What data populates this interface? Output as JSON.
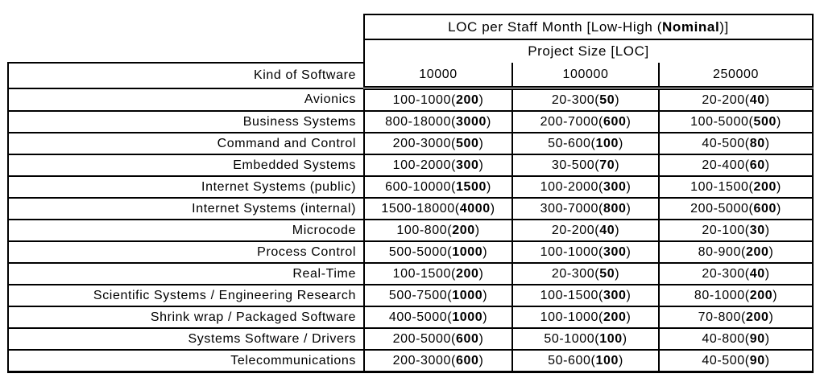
{
  "header": {
    "title": {
      "prefix": "LOC per Staff Month [Low-High (",
      "bold": "Nominal",
      "suffix": ")]"
    },
    "subtitle": "Project Size [LOC]",
    "kind_label": "Kind of Software",
    "columns": [
      "10000",
      "100000",
      "250000"
    ]
  },
  "cell_format": {
    "open": "(",
    "close": ")"
  },
  "rows": [
    {
      "kind": "Avionics",
      "cells": [
        {
          "range": "100-1000",
          "nominal": "200"
        },
        {
          "range": "20-300",
          "nominal": "50"
        },
        {
          "range": "20-200",
          "nominal": "40"
        }
      ]
    },
    {
      "kind": "Business Systems",
      "cells": [
        {
          "range": "800-18000",
          "nominal": "3000"
        },
        {
          "range": "200-7000",
          "nominal": "600"
        },
        {
          "range": "100-5000",
          "nominal": "500"
        }
      ]
    },
    {
      "kind": "Command and Control",
      "cells": [
        {
          "range": "200-3000",
          "nominal": "500"
        },
        {
          "range": "50-600",
          "nominal": "100"
        },
        {
          "range": "40-500",
          "nominal": "80"
        }
      ]
    },
    {
      "kind": "Embedded Systems",
      "cells": [
        {
          "range": "100-2000",
          "nominal": "300"
        },
        {
          "range": "30-500",
          "nominal": "70"
        },
        {
          "range": "20-400",
          "nominal": "60"
        }
      ]
    },
    {
      "kind": "Internet Systems (public)",
      "cells": [
        {
          "range": "600-10000",
          "nominal": "1500"
        },
        {
          "range": "100-2000",
          "nominal": "300"
        },
        {
          "range": "100-1500",
          "nominal": "200"
        }
      ]
    },
    {
      "kind": "Internet Systems (internal)",
      "cells": [
        {
          "range": "1500-18000",
          "nominal": "4000"
        },
        {
          "range": "300-7000",
          "nominal": "800"
        },
        {
          "range": "200-5000",
          "nominal": "600"
        }
      ]
    },
    {
      "kind": "Microcode",
      "cells": [
        {
          "range": "100-800",
          "nominal": "200"
        },
        {
          "range": "20-200",
          "nominal": "40"
        },
        {
          "range": "20-100",
          "nominal": "30"
        }
      ]
    },
    {
      "kind": "Process Control",
      "cells": [
        {
          "range": "500-5000",
          "nominal": "1000"
        },
        {
          "range": "100-1000",
          "nominal": "300"
        },
        {
          "range": "80-900",
          "nominal": "200"
        }
      ]
    },
    {
      "kind": "Real-Time",
      "cells": [
        {
          "range": "100-1500",
          "nominal": "200"
        },
        {
          "range": "20-300",
          "nominal": "50"
        },
        {
          "range": "20-300",
          "nominal": "40"
        }
      ]
    },
    {
      "kind": "Scientific Systems / Engineering Research",
      "cells": [
        {
          "range": "500-7500",
          "nominal": "1000"
        },
        {
          "range": "100-1500",
          "nominal": "300"
        },
        {
          "range": "80-1000",
          "nominal": "200"
        }
      ]
    },
    {
      "kind": "Shrink wrap / Packaged Software",
      "cells": [
        {
          "range": "400-5000",
          "nominal": "1000"
        },
        {
          "range": "100-1000",
          "nominal": "200"
        },
        {
          "range": "70-800",
          "nominal": "200"
        }
      ]
    },
    {
      "kind": "Systems Software / Drivers",
      "cells": [
        {
          "range": "200-5000",
          "nominal": "600"
        },
        {
          "range": "50-1000",
          "nominal": "100"
        },
        {
          "range": "40-800",
          "nominal": "90"
        }
      ]
    },
    {
      "kind": "Telecommunications",
      "cells": [
        {
          "range": "200-3000",
          "nominal": "600"
        },
        {
          "range": "50-600",
          "nominal": "100"
        },
        {
          "range": "40-500",
          "nominal": "90"
        }
      ]
    }
  ],
  "colors": {
    "border": "#000000",
    "background": "#ffffff",
    "text": "#000000"
  }
}
